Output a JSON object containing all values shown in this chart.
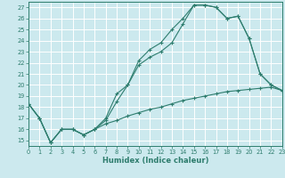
{
  "xlabel": "Humidex (Indice chaleur)",
  "bg_color": "#cce9ee",
  "line_color": "#2e7d6e",
  "grid_color": "#ffffff",
  "xlim": [
    0,
    23
  ],
  "ylim": [
    14.5,
    27.5
  ],
  "xticks": [
    0,
    1,
    2,
    3,
    4,
    5,
    6,
    7,
    8,
    9,
    10,
    11,
    12,
    13,
    14,
    15,
    16,
    17,
    18,
    19,
    20,
    21,
    22,
    23
  ],
  "yticks": [
    15,
    16,
    17,
    18,
    19,
    20,
    21,
    22,
    23,
    24,
    25,
    26,
    27
  ],
  "line1_x": [
    0,
    1,
    2,
    3,
    4,
    5,
    6,
    7,
    8,
    9,
    10,
    11,
    12,
    13,
    14,
    15,
    16,
    17,
    18,
    19,
    20,
    21,
    22,
    23
  ],
  "line1_y": [
    18.3,
    17.0,
    14.8,
    16.0,
    16.0,
    15.5,
    16.0,
    17.0,
    19.2,
    20.0,
    22.2,
    23.2,
    23.8,
    25.0,
    26.0,
    27.2,
    27.2,
    27.0,
    26.0,
    26.2,
    24.2,
    21.0,
    20.0,
    19.5
  ],
  "line2_x": [
    0,
    1,
    2,
    3,
    4,
    5,
    6,
    7,
    8,
    9,
    10,
    11,
    12,
    13,
    14,
    15,
    16,
    17,
    18,
    19,
    20,
    21,
    22,
    23
  ],
  "line2_y": [
    18.3,
    17.0,
    14.8,
    16.0,
    16.0,
    15.5,
    16.0,
    16.8,
    18.5,
    20.0,
    21.8,
    22.5,
    23.0,
    23.8,
    25.5,
    27.2,
    27.2,
    27.0,
    26.0,
    26.2,
    24.2,
    21.0,
    20.0,
    19.5
  ],
  "line3_x": [
    0,
    1,
    2,
    3,
    4,
    5,
    6,
    7,
    8,
    9,
    10,
    11,
    12,
    13,
    14,
    15,
    16,
    17,
    18,
    19,
    20,
    21,
    22,
    23
  ],
  "line3_y": [
    18.3,
    17.0,
    14.8,
    16.0,
    16.0,
    15.5,
    16.0,
    16.5,
    16.8,
    17.2,
    17.5,
    17.8,
    18.0,
    18.3,
    18.6,
    18.8,
    19.0,
    19.2,
    19.4,
    19.5,
    19.6,
    19.7,
    19.8,
    19.5
  ]
}
